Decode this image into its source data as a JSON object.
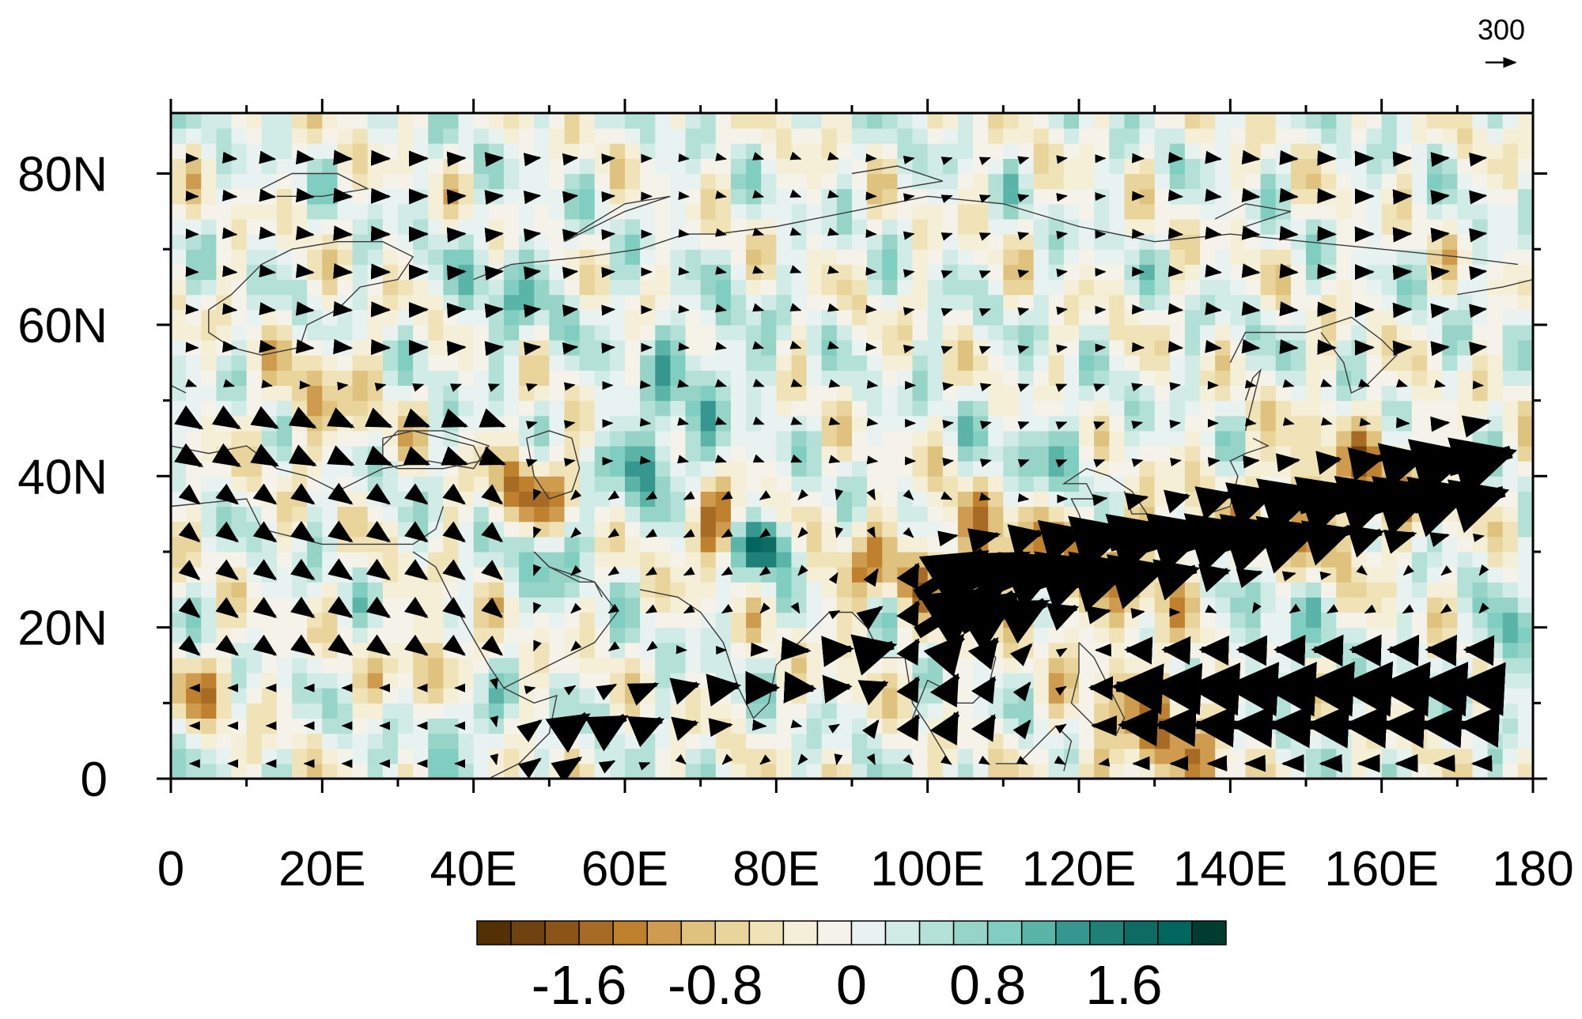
{
  "figure": {
    "reference_vector": {
      "magnitude_label": "300"
    }
  },
  "map": {
    "projection": "cylindrical-equidistant",
    "lon_range": [
      0,
      180
    ],
    "lat_range": [
      0,
      88
    ],
    "x_tick_labels": [
      "0",
      "20E",
      "40E",
      "60E",
      "80E",
      "100E",
      "120E",
      "140E",
      "160E",
      "180"
    ],
    "x_tick_values": [
      0,
      20,
      40,
      60,
      80,
      100,
      120,
      140,
      160,
      180
    ],
    "y_tick_labels": [
      "0",
      "20N",
      "40N",
      "60N",
      "80N"
    ],
    "y_tick_values": [
      0,
      20,
      40,
      60,
      80
    ],
    "minor_x_step": 10,
    "minor_y_step": 10
  },
  "colorbar": {
    "labels": [
      "-1.6",
      "-0.8",
      "0",
      "0.8",
      "1.6"
    ],
    "label_values": [
      -1.6,
      -0.8,
      0,
      0.8,
      1.6
    ],
    "levels": [
      -2.2,
      -2.0,
      -1.8,
      -1.6,
      -1.4,
      -1.2,
      -1.0,
      -0.8,
      -0.6,
      -0.4,
      -0.2,
      0,
      0.2,
      0.4,
      0.6,
      0.8,
      1.0,
      1.2,
      1.4,
      1.6,
      1.8,
      2.0,
      2.2
    ],
    "colors": [
      "#543005",
      "#6f4210",
      "#8c5417",
      "#a76b25",
      "#bf812d",
      "#cf9b4f",
      "#dfc27d",
      "#e9d59c",
      "#f0e3b8",
      "#f6efd8",
      "#f5f2ea",
      "#e8f2f0",
      "#d1ece6",
      "#b4e1d7",
      "#97d4c8",
      "#80cdc1",
      "#5ab4a8",
      "#35978f",
      "#1f8078",
      "#0d6b63",
      "#01665e",
      "#003c30"
    ]
  },
  "flux_field": {
    "strong_belts": [
      {
        "name": "subtropical-westerly-jet",
        "lon": [
          105,
          172
        ],
        "lat": [
          22,
          40
        ],
        "direction": "east-northeast"
      },
      {
        "name": "somali-jet",
        "lon": [
          45,
          85
        ],
        "lat": [
          3,
          18
        ],
        "direction": "northeast"
      },
      {
        "name": "pacific-easterlies",
        "lon": [
          120,
          175
        ],
        "lat": [
          3,
          20
        ],
        "direction": "west"
      },
      {
        "name": "bay-of-bengal-monsoon",
        "lon": [
          85,
          110
        ],
        "lat": [
          15,
          30
        ],
        "direction": "northeast"
      }
    ],
    "shading_range": [
      -2.2,
      2.2
    ]
  }
}
